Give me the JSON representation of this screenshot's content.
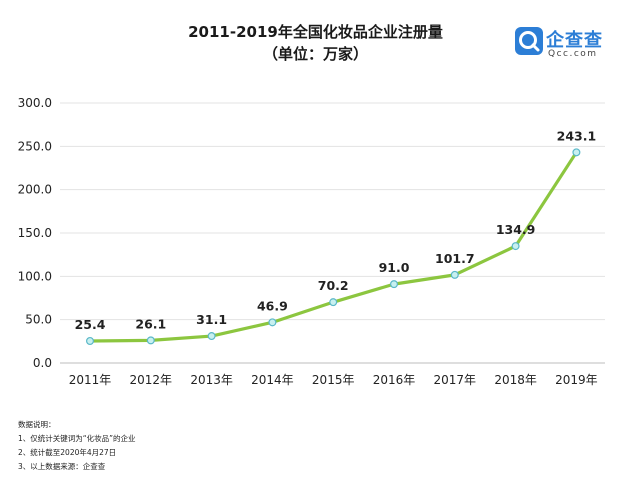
{
  "header": {
    "title": "2011-2019年全国化妆品企业注册量",
    "subtitle": "（单位：万家）"
  },
  "logo": {
    "text": "企查查",
    "sub": "Qcc.com"
  },
  "chart_data": {
    "type": "line",
    "title": "2011-2019年全国化妆品企业注册量",
    "subtitle": "（单位：万家）",
    "categories": [
      "2011年",
      "2012年",
      "2013年",
      "2014年",
      "2015年",
      "2016年",
      "2017年",
      "2018年",
      "2019年"
    ],
    "values": [
      25.4,
      26.1,
      31.1,
      46.9,
      70.2,
      91.0,
      101.7,
      134.9,
      243.1
    ],
    "value_labels": [
      "25.4",
      "26.1",
      "31.1",
      "46.9",
      "70.2",
      "91.0",
      "101.7",
      "134.9",
      "243.1"
    ],
    "yticks": [
      "0.0",
      "50.0",
      "100.0",
      "150.0",
      "200.0",
      "250.0",
      "300.0"
    ],
    "ylim": [
      0,
      300
    ],
    "grid": true,
    "line_color": "#8cc63f",
    "marker_fill": "#c8f0f0",
    "marker_stroke": "#5bb8c8"
  },
  "notes": {
    "heading": "数据说明：",
    "items": [
      "1、仅统计关键词为“化妆品”的企业",
      "2、统计截至2020年4月27日",
      "3、以上数据来源：企查查"
    ]
  }
}
